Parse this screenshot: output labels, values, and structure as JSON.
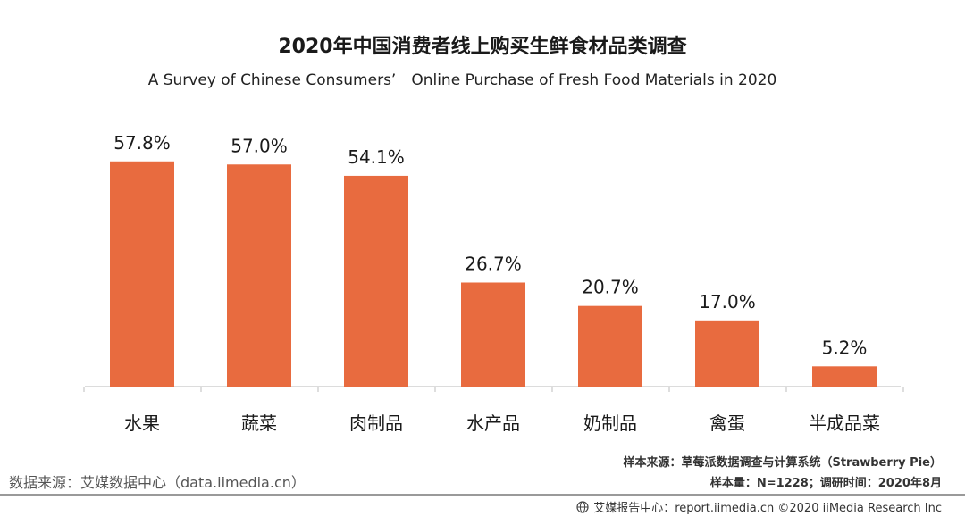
{
  "chart_data": {
    "type": "bar",
    "title": "2020年中国消费者线上购买生鲜食材品类调查",
    "subtitle": "A Survey of Chinese Consumers’　Online Purchase of Fresh Food Materials in 2020",
    "categories": [
      "水果",
      "蔬菜",
      "肉制品",
      "水产品",
      "奶制品",
      "禽蛋",
      "半成品菜"
    ],
    "values": [
      57.8,
      57.0,
      54.1,
      26.7,
      20.7,
      17.0,
      5.2
    ],
    "data_labels": [
      "57.8%",
      "57.0%",
      "54.1%",
      "26.7%",
      "20.7%",
      "17.0%",
      "5.2%"
    ],
    "unit": "%",
    "ylim": [
      0,
      66
    ],
    "grid": false,
    "bar_color": "#E86B3F"
  },
  "source": {
    "left": "数据来源：艾媒数据中心（data.iimedia.cn）",
    "right_line1": "样本来源：草莓派数据调查与计算系统（Strawberry Pie）",
    "right_line2": "样本量：N=1228；调研时间：2020年8月"
  },
  "footer": {
    "brand": "艾媒报告中心：report.iimedia.cn ©2020 iiMedia Research Inc",
    "icon": "globe-icon"
  }
}
